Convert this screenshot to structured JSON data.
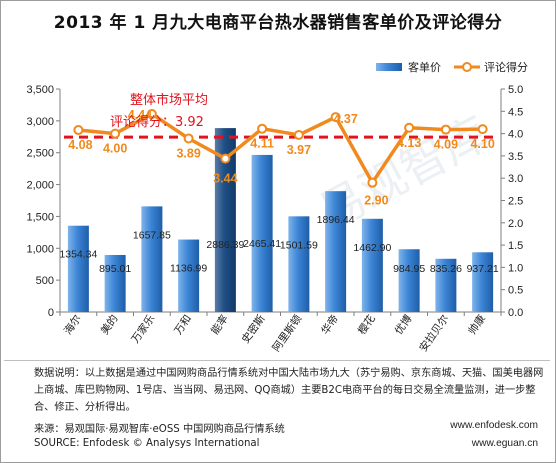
{
  "title": "2013 年 1 月九大电商平台热水器销售客单价及评论得分",
  "annotation": {
    "line1": "整体市场平均",
    "line2": "评论得分：3.92"
  },
  "footer": {
    "note": "数据说明：以上数据是通过中国网购商品行情系统对中国大陆市场九大（苏宁易购、京东商城、天猫、国美电器网上商城、库巴购物网、1号店、当当网、易迅网、QQ商城）主要B2C电商平台的每日交易全流量监测，进一步整合、修正、分析得出。",
    "source_cn": "来源：易观国际·易观智库·eOSS 中国网购商品行情系统",
    "source_en": "SOURCE: Enfodesk © Analysys International",
    "url1": "www.enfodesk.com",
    "url2": "www.eguan.cn"
  },
  "watermark": "易观智库",
  "chart_data": {
    "type": "bar",
    "categories": [
      "海尔",
      "美的",
      "万家乐",
      "万和",
      "能率",
      "史密斯",
      "阿里斯顿",
      "华帝",
      "樱花",
      "优博",
      "安拉贝尔",
      "帅康"
    ],
    "series": [
      {
        "name": "客单价",
        "type": "bar",
        "axis": "left",
        "color": "#2e74c6",
        "values": [
          1354.34,
          895.01,
          1657.85,
          1136.99,
          2886.39,
          2465.41,
          1501.59,
          1896.44,
          1462.9,
          984.95,
          835.26,
          937.21
        ]
      },
      {
        "name": "评论得分",
        "type": "line",
        "axis": "right",
        "color": "#f08a1e",
        "values": [
          4.08,
          4.0,
          4.44,
          3.89,
          3.44,
          4.11,
          3.97,
          4.37,
          2.9,
          4.13,
          4.09,
          4.1
        ]
      }
    ],
    "bar_labels": [
      "1354.34",
      "895.01",
      "1657.85",
      "1136.99",
      "2886.39",
      "2465.41",
      "1501.59",
      "1896.44",
      "1462.90",
      "984.95",
      "835.26",
      "937.21"
    ],
    "line_labels": [
      "4.08",
      "4.00",
      "4.44",
      "3.89",
      "3.44",
      "4.11",
      "3.97",
      "4.37",
      "2.90",
      "4.13",
      "4.09",
      "4.10"
    ],
    "reference_line": {
      "value": 3.92,
      "axis": "right",
      "color": "#e0141e",
      "style": "dashed"
    },
    "ylim_left": [
      0,
      3500
    ],
    "yticks_left": [
      "0",
      "500",
      "1,000",
      "1,500",
      "2,000",
      "2,500",
      "3,000",
      "3,500"
    ],
    "ylim_right": [
      0,
      5.0
    ],
    "yticks_right": [
      "0.0",
      "0.5",
      "1.0",
      "1.5",
      "2.0",
      "2.5",
      "3.0",
      "3.5",
      "4.0",
      "4.5",
      "5.0"
    ],
    "legend": [
      "客单价",
      "评论得分"
    ],
    "legend_position": "top-right",
    "grid": false
  }
}
